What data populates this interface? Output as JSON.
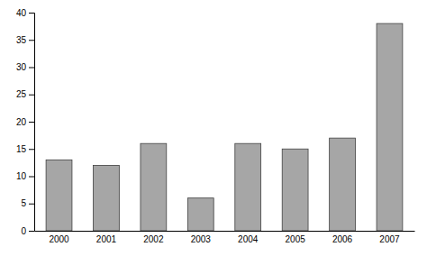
{
  "chart_data": {
    "type": "bar",
    "categories": [
      "2000",
      "2001",
      "2002",
      "2003",
      "2004",
      "2005",
      "2006",
      "2007"
    ],
    "values": [
      13,
      12,
      16,
      6,
      16,
      15,
      17,
      38
    ],
    "color": "#a6a6a6",
    "ylim": [
      0,
      40
    ],
    "yticks": [
      0,
      5,
      10,
      15,
      20,
      25,
      30,
      35,
      40
    ],
    "grid": false
  }
}
